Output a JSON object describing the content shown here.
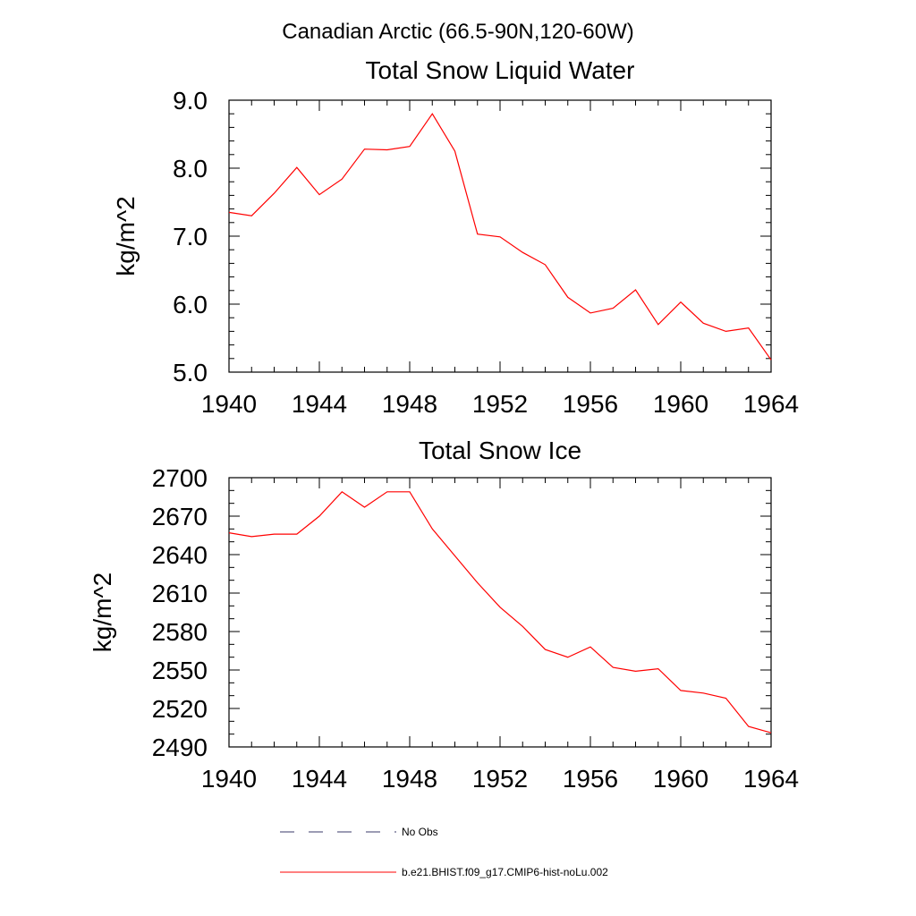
{
  "figure": {
    "suptitle": "Canadian Arctic (66.5-90N,120-60W)"
  },
  "chart_data": [
    {
      "type": "line",
      "title": "Total Snow Liquid Water",
      "xlabel": "",
      "ylabel": "kg/m^2",
      "xlim": [
        1940,
        1964
      ],
      "ylim": [
        5.0,
        9.0
      ],
      "xticks": [
        "1940",
        "1944",
        "1948",
        "1952",
        "1956",
        "1960",
        "1964"
      ],
      "yticks": [
        "5.0",
        "6.0",
        "7.0",
        "8.0",
        "9.0"
      ],
      "x": [
        1940,
        1941,
        1942,
        1943,
        1944,
        1945,
        1946,
        1947,
        1948,
        1949,
        1950,
        1951,
        1952,
        1953,
        1954,
        1955,
        1956,
        1957,
        1958,
        1959,
        1960,
        1961,
        1962,
        1963,
        1964
      ],
      "series": [
        {
          "name": "b.e21.BHIST.f09_g17.CMIP6-hist-noLu.002",
          "color": "#ff0000",
          "values": [
            7.35,
            7.3,
            7.63,
            8.01,
            7.61,
            7.84,
            8.28,
            8.27,
            8.32,
            8.8,
            8.25,
            7.03,
            6.99,
            6.76,
            6.58,
            6.1,
            5.87,
            5.94,
            6.21,
            5.7,
            6.03,
            5.72,
            5.6,
            5.65,
            5.18
          ]
        }
      ]
    },
    {
      "type": "line",
      "title": "Total Snow Ice",
      "xlabel": "",
      "ylabel": "kg/m^2",
      "xlim": [
        1940,
        1964
      ],
      "ylim": [
        2490,
        2700
      ],
      "xticks": [
        "1940",
        "1944",
        "1948",
        "1952",
        "1956",
        "1960",
        "1964"
      ],
      "yticks": [
        "2490",
        "2520",
        "2550",
        "2580",
        "2610",
        "2640",
        "2670",
        "2700"
      ],
      "x": [
        1940,
        1941,
        1942,
        1943,
        1944,
        1945,
        1946,
        1947,
        1948,
        1949,
        1950,
        1951,
        1952,
        1953,
        1954,
        1955,
        1956,
        1957,
        1958,
        1959,
        1960,
        1961,
        1962,
        1963,
        1964
      ],
      "series": [
        {
          "name": "b.e21.BHIST.f09_g17.CMIP6-hist-noLu.002",
          "color": "#ff0000",
          "values": [
            2657,
            2654,
            2656,
            2656,
            2670,
            2689,
            2677,
            2689,
            2689,
            2660,
            2639,
            2618,
            2599,
            2584,
            2566,
            2560,
            2568,
            2552,
            2549,
            2551,
            2534,
            2532,
            2528,
            2506,
            2501
          ]
        }
      ]
    }
  ],
  "legend": {
    "items": [
      {
        "label": "No Obs",
        "color": "#3a3a6a",
        "dash": "dashed"
      },
      {
        "label": "b.e21.BHIST.f09_g17.CMIP6-hist-noLu.002",
        "color": "#ff0000",
        "dash": "solid"
      }
    ]
  }
}
